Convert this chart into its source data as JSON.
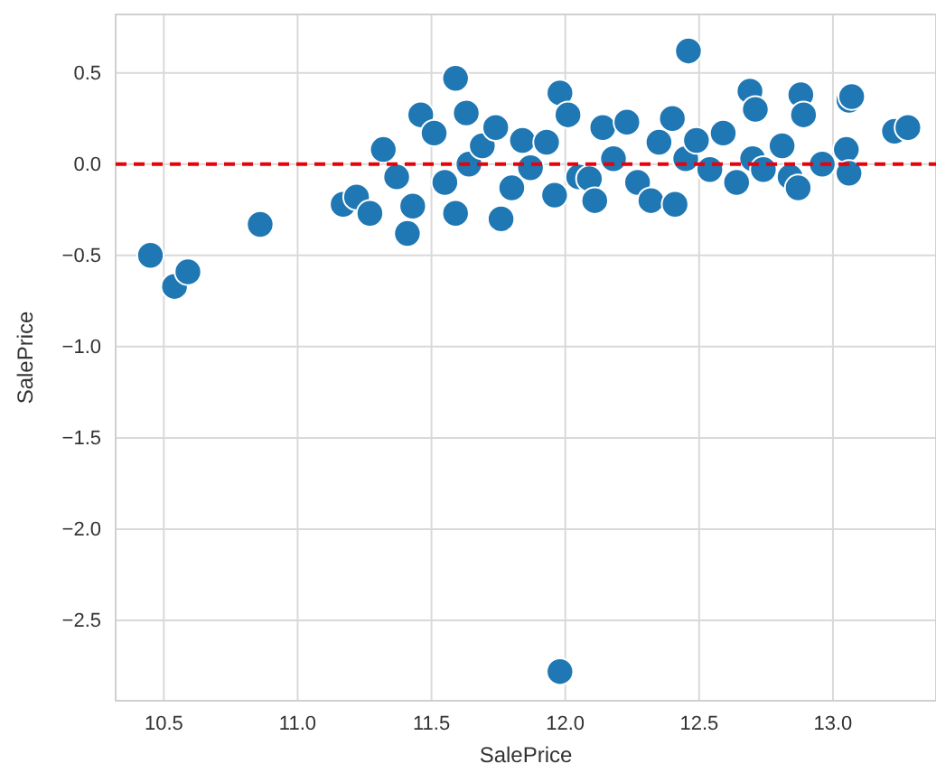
{
  "chart_data": {
    "type": "scatter",
    "xlabel": "SalePrice",
    "ylabel": "SalePrice",
    "xlim": [
      10.32,
      13.385
    ],
    "ylim": [
      -2.94,
      0.82
    ],
    "xticks": [
      10.5,
      {
        "value": 11,
        "label": "11.0"
      },
      11.5,
      {
        "value": 12,
        "label": "12.0"
      },
      12.5,
      {
        "value": 13,
        "label": "13.0"
      }
    ],
    "yticks": [
      {
        "value": -2.5,
        "label": "−2.5"
      },
      {
        "value": -2,
        "label": "−2.0"
      },
      {
        "value": -1.5,
        "label": "−1.5"
      },
      {
        "value": -1,
        "label": "−1.0"
      },
      {
        "value": -0.5,
        "label": "−0.5"
      },
      {
        "value": 0,
        "label": "0.0"
      },
      0.5
    ],
    "grid": true,
    "marker": "circle",
    "ref_lines": [
      {
        "axis": "y",
        "value": 0,
        "color": "#e8000b",
        "line_style": "dashed"
      }
    ],
    "series": [
      {
        "color": "#1f77b4",
        "x": [
          10.45,
          10.54,
          10.59,
          10.86,
          12.46,
          11.98,
          11.59,
          11.98,
          13.23,
          13.28,
          13.06,
          11.17,
          11.22,
          11.27,
          11.32,
          11.37,
          11.41,
          11.43,
          11.46,
          11.51,
          11.55,
          11.59,
          11.63,
          11.64,
          11.69,
          11.74,
          11.76,
          11.8,
          11.84,
          11.87,
          11.93,
          11.96,
          12.01,
          12.05,
          12.09,
          12.11,
          12.14,
          12.18,
          12.23,
          12.27,
          12.32,
          12.35,
          12.4,
          12.41,
          12.45,
          12.49,
          12.54,
          12.59,
          12.64,
          12.69,
          12.71,
          12.7,
          12.74,
          12.81,
          12.84,
          12.87,
          12.88,
          12.89,
          12.96,
          13.05,
          13.06,
          13.07
        ],
        "values": [
          -0.5,
          -0.67,
          -0.59,
          -0.33,
          0.62,
          -2.78,
          0.47,
          0.39,
          0.18,
          0.2,
          0.35,
          -0.22,
          -0.18,
          -0.27,
          0.08,
          -0.07,
          -0.38,
          -0.23,
          0.27,
          0.17,
          -0.1,
          -0.27,
          0.28,
          0.0,
          0.1,
          0.2,
          -0.3,
          -0.13,
          0.13,
          -0.02,
          0.12,
          -0.17,
          0.27,
          -0.07,
          -0.08,
          -0.2,
          0.2,
          0.03,
          0.23,
          -0.1,
          -0.2,
          0.12,
          0.25,
          -0.22,
          0.03,
          0.13,
          -0.03,
          0.17,
          -0.1,
          0.4,
          0.3,
          0.03,
          -0.03,
          0.1,
          -0.07,
          -0.13,
          0.38,
          0.27,
          0.0,
          0.08,
          -0.05,
          0.37
        ]
      }
    ]
  }
}
